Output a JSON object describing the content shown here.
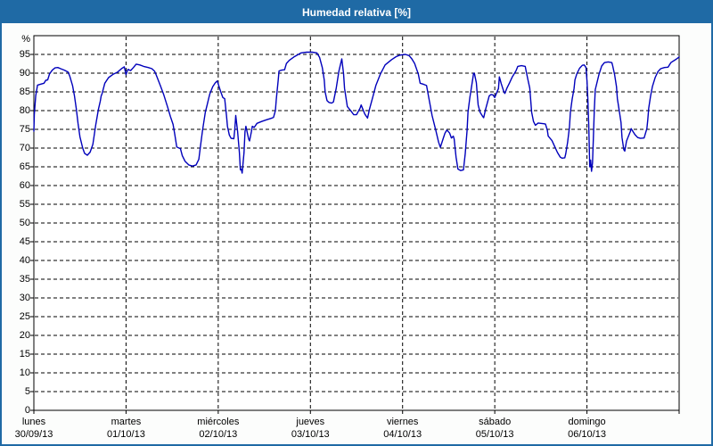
{
  "window": {
    "title": "Humedad relativa [%]"
  },
  "colors": {
    "accent_blue": "#1f6aa5",
    "title_text": "#ffffff",
    "margin_bg": "#fcfdfc",
    "plot_bg": "#ffffff",
    "grid": "#000000",
    "axis": "#000000",
    "label_text": "#000000",
    "line": "#0000bb"
  },
  "chart_data": {
    "type": "line",
    "title": "Humedad relativa [%]",
    "unit_label": "%",
    "ylabel": "",
    "xlabel": "",
    "ylim": [
      0,
      100
    ],
    "y_ticks": [
      0,
      5,
      10,
      15,
      20,
      25,
      30,
      35,
      40,
      45,
      50,
      55,
      60,
      65,
      70,
      75,
      80,
      85,
      90,
      95
    ],
    "grid": "dashed",
    "legend": "none",
    "xlim_days": [
      0,
      7
    ],
    "x_days": [
      {
        "name": "lunes",
        "date": "30/09/13"
      },
      {
        "name": "martes",
        "date": "01/10/13"
      },
      {
        "name": "miércoles",
        "date": "02/10/13"
      },
      {
        "name": "jueves",
        "date": "03/10/13"
      },
      {
        "name": "viernes",
        "date": "04/10/13"
      },
      {
        "name": "sábado",
        "date": "05/10/13"
      },
      {
        "name": "domingo",
        "date": "06/10/13"
      }
    ],
    "series": [
      {
        "name": "Humedad relativa [%]",
        "x_unit": "days_from_monday_00h",
        "points": [
          [
            0,
            74.5
          ],
          [
            0.005,
            79
          ],
          [
            0.02,
            84
          ],
          [
            0.04,
            86.8
          ],
          [
            0.08,
            87.1
          ],
          [
            0.11,
            87.3
          ],
          [
            0.13,
            88.1
          ],
          [
            0.15,
            88.2
          ],
          [
            0.17,
            89.8
          ],
          [
            0.2,
            90.8
          ],
          [
            0.23,
            91.4
          ],
          [
            0.26,
            91.5
          ],
          [
            0.29,
            91.2
          ],
          [
            0.33,
            90.8
          ],
          [
            0.37,
            90.3
          ],
          [
            0.39,
            89.2
          ],
          [
            0.42,
            86.7
          ],
          [
            0.44,
            84
          ],
          [
            0.46,
            80.5
          ],
          [
            0.48,
            76.5
          ],
          [
            0.5,
            73
          ],
          [
            0.53,
            70
          ],
          [
            0.55,
            68.6
          ],
          [
            0.58,
            68.1
          ],
          [
            0.61,
            68.9
          ],
          [
            0.64,
            71
          ],
          [
            0.67,
            76
          ],
          [
            0.7,
            80.3
          ],
          [
            0.72,
            82.5
          ],
          [
            0.73,
            83.9
          ],
          [
            0.74,
            84.5
          ],
          [
            0.77,
            87.3
          ],
          [
            0.81,
            88.8
          ],
          [
            0.86,
            89.7
          ],
          [
            0.91,
            90.3
          ],
          [
            0.95,
            91.2
          ],
          [
            0.98,
            91.7
          ],
          [
            1,
            89.6
          ],
          [
            1.02,
            91
          ],
          [
            1.05,
            90.7
          ],
          [
            1.08,
            91.5
          ],
          [
            1.11,
            92.4
          ],
          [
            1.15,
            92.2
          ],
          [
            1.19,
            91.8
          ],
          [
            1.24,
            91.5
          ],
          [
            1.28,
            91.2
          ],
          [
            1.31,
            90.5
          ],
          [
            1.33,
            89.3
          ],
          [
            1.37,
            86.8
          ],
          [
            1.41,
            84.2
          ],
          [
            1.45,
            81
          ],
          [
            1.48,
            78.5
          ],
          [
            1.51,
            76.3
          ],
          [
            1.53,
            73.5
          ],
          [
            1.55,
            70.3
          ],
          [
            1.59,
            69.8
          ],
          [
            1.61,
            68
          ],
          [
            1.64,
            66.5
          ],
          [
            1.68,
            65.5
          ],
          [
            1.72,
            65.2
          ],
          [
            1.76,
            65.5
          ],
          [
            1.79,
            67
          ],
          [
            1.81,
            71
          ],
          [
            1.83,
            74.8
          ],
          [
            1.86,
            79.6
          ],
          [
            1.88,
            81.5
          ],
          [
            1.9,
            83.6
          ],
          [
            1.91,
            84.5
          ],
          [
            1.94,
            86.4
          ],
          [
            1.97,
            87.5
          ],
          [
            1.99,
            87.9
          ],
          [
            2.01,
            86.3
          ],
          [
            2.03,
            84.8
          ],
          [
            2.05,
            83.5
          ],
          [
            2.07,
            83.2
          ],
          [
            2.09,
            78.5
          ],
          [
            2.1,
            75.8
          ],
          [
            2.12,
            73.5
          ],
          [
            2.14,
            72.6
          ],
          [
            2.17,
            72.5
          ],
          [
            2.18,
            75.2
          ],
          [
            2.19,
            78.7
          ],
          [
            2.21,
            74.4
          ],
          [
            2.23,
            68.8
          ],
          [
            2.24,
            64.2
          ],
          [
            2.25,
            64.4
          ],
          [
            2.26,
            63.3
          ],
          [
            2.28,
            68.8
          ],
          [
            2.29,
            74.4
          ],
          [
            2.3,
            75.8
          ],
          [
            2.33,
            72.4
          ],
          [
            2.34,
            71.9
          ],
          [
            2.36,
            74.4
          ],
          [
            2.37,
            75.8
          ],
          [
            2.39,
            75.5
          ],
          [
            2.42,
            76.6
          ],
          [
            2.47,
            77.1
          ],
          [
            2.53,
            77.6
          ],
          [
            2.57,
            77.9
          ],
          [
            2.6,
            78.2
          ],
          [
            2.62,
            80
          ],
          [
            2.63,
            83
          ],
          [
            2.65,
            88
          ],
          [
            2.66,
            90.6
          ],
          [
            2.69,
            90.8
          ],
          [
            2.72,
            90.9
          ],
          [
            2.74,
            92.6
          ],
          [
            2.77,
            93.4
          ],
          [
            2.82,
            94.3
          ],
          [
            2.87,
            95
          ],
          [
            2.9,
            95.4
          ],
          [
            2.96,
            95.6
          ],
          [
            3.02,
            95.6
          ],
          [
            3.07,
            95.4
          ],
          [
            3.1,
            94.2
          ],
          [
            3.13,
            91.4
          ],
          [
            3.15,
            88.2
          ],
          [
            3.16,
            85
          ],
          [
            3.18,
            82.7
          ],
          [
            3.2,
            82.2
          ],
          [
            3.23,
            82
          ],
          [
            3.25,
            82.3
          ],
          [
            3.28,
            85.9
          ],
          [
            3.31,
            90.6
          ],
          [
            3.34,
            93.8
          ],
          [
            3.36,
            89.8
          ],
          [
            3.37,
            85.9
          ],
          [
            3.4,
            81.1
          ],
          [
            3.44,
            79.9
          ],
          [
            3.47,
            78.9
          ],
          [
            3.5,
            78.9
          ],
          [
            3.54,
            80.7
          ],
          [
            3.55,
            81.5
          ],
          [
            3.59,
            79.1
          ],
          [
            3.62,
            78
          ],
          [
            3.64,
            80.3
          ],
          [
            3.68,
            83.9
          ],
          [
            3.71,
            86.7
          ],
          [
            3.76,
            89.8
          ],
          [
            3.81,
            92.2
          ],
          [
            3.88,
            93.6
          ],
          [
            3.93,
            94.4
          ],
          [
            3.97,
            94.8
          ],
          [
            4.03,
            95
          ],
          [
            4.07,
            94.7
          ],
          [
            4.1,
            93.8
          ],
          [
            4.13,
            92.6
          ],
          [
            4.17,
            89.8
          ],
          [
            4.19,
            87.3
          ],
          [
            4.23,
            87
          ],
          [
            4.26,
            86.7
          ],
          [
            4.29,
            82.7
          ],
          [
            4.32,
            78.7
          ],
          [
            4.36,
            74.8
          ],
          [
            4.39,
            71.6
          ],
          [
            4.41,
            70.2
          ],
          [
            4.44,
            72.5
          ],
          [
            4.46,
            74
          ],
          [
            4.48,
            74.8
          ],
          [
            4.51,
            74
          ],
          [
            4.53,
            72.7
          ],
          [
            4.55,
            73.2
          ],
          [
            4.56,
            72.4
          ],
          [
            4.58,
            67.6
          ],
          [
            4.6,
            64.4
          ],
          [
            4.63,
            64
          ],
          [
            4.66,
            64.2
          ],
          [
            4.68,
            68.5
          ],
          [
            4.7,
            74.8
          ],
          [
            4.71,
            79.6
          ],
          [
            4.73,
            83.5
          ],
          [
            4.75,
            86.7
          ],
          [
            4.77,
            90
          ],
          [
            4.78,
            89.8
          ],
          [
            4.8,
            87.4
          ],
          [
            4.81,
            84.3
          ],
          [
            4.82,
            81.5
          ],
          [
            4.84,
            79.6
          ],
          [
            4.87,
            78.4
          ],
          [
            4.88,
            78.1
          ],
          [
            4.9,
            80.3
          ],
          [
            4.94,
            83.9
          ],
          [
            4.96,
            84.3
          ],
          [
            4.98,
            84.2
          ],
          [
            5,
            83.5
          ],
          [
            5.04,
            85.9
          ],
          [
            5.05,
            89
          ],
          [
            5.07,
            87.2
          ],
          [
            5.1,
            84.9
          ],
          [
            5.11,
            84.6
          ],
          [
            5.13,
            85.9
          ],
          [
            5.16,
            87.4
          ],
          [
            5.19,
            89
          ],
          [
            5.23,
            90.6
          ],
          [
            5.25,
            91.8
          ],
          [
            5.29,
            92
          ],
          [
            5.33,
            91.8
          ],
          [
            5.34,
            90.6
          ],
          [
            5.36,
            88.2
          ],
          [
            5.38,
            86
          ],
          [
            5.39,
            82.7
          ],
          [
            5.4,
            79.6
          ],
          [
            5.42,
            77.1
          ],
          [
            5.44,
            76.1
          ],
          [
            5.47,
            76.7
          ],
          [
            5.5,
            76.6
          ],
          [
            5.53,
            76.5
          ],
          [
            5.55,
            76.4
          ],
          [
            5.57,
            74.8
          ],
          [
            5.58,
            73.2
          ],
          [
            5.62,
            72
          ],
          [
            5.65,
            70.4
          ],
          [
            5.68,
            68.8
          ],
          [
            5.71,
            67.6
          ],
          [
            5.73,
            67.3
          ],
          [
            5.76,
            67.4
          ],
          [
            5.77,
            68.5
          ],
          [
            5.79,
            71.6
          ],
          [
            5.81,
            75.5
          ],
          [
            5.82,
            79.6
          ],
          [
            5.84,
            83.1
          ],
          [
            5.86,
            85.9
          ],
          [
            5.87,
            88.2
          ],
          [
            5.89,
            89.8
          ],
          [
            5.92,
            91.3
          ],
          [
            5.95,
            92.1
          ],
          [
            5.97,
            92.2
          ],
          [
            5.99,
            91.5
          ],
          [
            6,
            88
          ],
          [
            6.01,
            83
          ],
          [
            6.02,
            76
          ],
          [
            6.025,
            70
          ],
          [
            6.03,
            65
          ],
          [
            6.04,
            66.8
          ],
          [
            6.05,
            63.8
          ],
          [
            6.06,
            66
          ],
          [
            6.07,
            72.8
          ],
          [
            6.08,
            80
          ],
          [
            6.09,
            85.6
          ],
          [
            6.13,
            89.6
          ],
          [
            6.16,
            91.9
          ],
          [
            6.19,
            92.8
          ],
          [
            6.23,
            93
          ],
          [
            6.27,
            92.8
          ],
          [
            6.28,
            91.9
          ],
          [
            6.3,
            89.6
          ],
          [
            6.32,
            86.4
          ],
          [
            6.33,
            83.2
          ],
          [
            6.35,
            80
          ],
          [
            6.37,
            76.8
          ],
          [
            6.38,
            72.8
          ],
          [
            6.4,
            69.6
          ],
          [
            6.41,
            69.2
          ],
          [
            6.43,
            71.9
          ],
          [
            6.47,
            74.4
          ],
          [
            6.48,
            75.2
          ],
          [
            6.52,
            73.6
          ],
          [
            6.55,
            72.8
          ],
          [
            6.58,
            72.6
          ],
          [
            6.62,
            72.7
          ],
          [
            6.65,
            75.2
          ],
          [
            6.66,
            77.5
          ],
          [
            6.67,
            80.7
          ],
          [
            6.69,
            83.8
          ],
          [
            6.71,
            86.4
          ],
          [
            6.74,
            88.8
          ],
          [
            6.77,
            90.4
          ],
          [
            6.8,
            91.2
          ],
          [
            6.84,
            91.5
          ],
          [
            6.88,
            91.6
          ],
          [
            6.91,
            92.8
          ],
          [
            6.96,
            93.6
          ],
          [
            7,
            94.3
          ]
        ]
      }
    ]
  }
}
